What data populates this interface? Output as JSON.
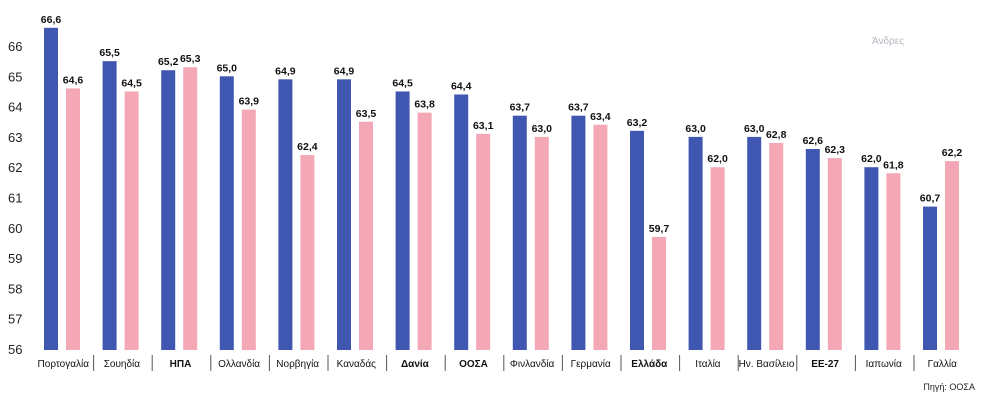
{
  "chart_data": {
    "type": "bar",
    "title": "",
    "xlabel": "",
    "ylabel": "",
    "ylim": [
      56,
      67
    ],
    "yticks": [
      56,
      57,
      58,
      59,
      60,
      61,
      62,
      63,
      64,
      65,
      66
    ],
    "grid": false,
    "categories": [
      "Πορτογαλία",
      "Σουηδία",
      "ΗΠΑ",
      "Ολλανδία",
      "Νορβηγία",
      "Καναδάς",
      "Δανία",
      "ΟΟΣΑ",
      "Φινλανδία",
      "Γερμανία",
      "Ελλάδα",
      "Ιταλία",
      "Ην. Βασίλειο",
      "ΕΕ-27",
      "Ιαπωνία",
      "Γαλλία"
    ],
    "bold_categories": [
      "ΗΠΑ",
      "Δανία",
      "ΟΟΣΑ",
      "Ελλάδα",
      "ΕΕ-27"
    ],
    "series": [
      {
        "name": "Άνδρες",
        "color": "#3f57b0",
        "values": [
          66.6,
          65.5,
          65.2,
          65.0,
          64.9,
          64.9,
          64.5,
          64.4,
          63.7,
          63.7,
          63.2,
          63.0,
          63.0,
          62.6,
          62.0,
          60.7
        ],
        "labels": [
          "66,6",
          "65,5",
          "65,2",
          "65,0",
          "64,9",
          "64,9",
          "64,5",
          "64,4",
          "63,7",
          "63,7",
          "63,2",
          "63,0",
          "63,0",
          "62,6",
          "62,0",
          "60,7"
        ]
      },
      {
        "color": "#f4a7b5",
        "values": [
          64.6,
          64.5,
          65.3,
          63.9,
          62.4,
          63.5,
          63.8,
          63.1,
          63.0,
          63.4,
          59.7,
          62.0,
          62.8,
          62.3,
          61.8,
          62.2
        ],
        "labels": [
          "64,6",
          "64,5",
          "65,3",
          "63,9",
          "62,4",
          "63,5",
          "63,8",
          "63,1",
          "63,0",
          "63,4",
          "59,7",
          "62,0",
          "62,8",
          "62,3",
          "61,8",
          "62,2"
        ]
      }
    ],
    "legend_position": "top-right",
    "source_note": "Πηγή: ΟΟΣΑ"
  }
}
